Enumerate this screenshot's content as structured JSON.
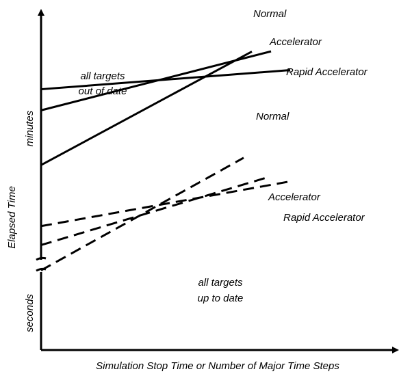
{
  "chart_data": {
    "type": "line",
    "xlabel": "Simulation Stop Time or Number of Major Time Steps",
    "ylabel": "Elapsed Time",
    "y_band_labels": {
      "upper": "minutes",
      "lower": "seconds"
    },
    "annotations": {
      "upper": [
        "all targets",
        "out of date"
      ],
      "lower": [
        "all targets",
        "up to date"
      ]
    },
    "axis_break": true,
    "grid": false,
    "legend": "none",
    "series": [
      {
        "name": "Normal",
        "group": "all targets out of date",
        "style": "solid",
        "x": [
          0,
          100
        ],
        "y": [
          32,
          95
        ]
      },
      {
        "name": "Accelerator",
        "group": "all targets out of date",
        "style": "solid",
        "x": [
          0,
          100
        ],
        "y": [
          58,
          88
        ]
      },
      {
        "name": "Rapid Accelerator",
        "group": "all targets out of date",
        "style": "solid",
        "x": [
          0,
          100
        ],
        "y": [
          68,
          77
        ]
      },
      {
        "name": "Normal",
        "group": "all targets up to date",
        "style": "dashed",
        "x": [
          0,
          100
        ],
        "y": [
          -18,
          47
        ]
      },
      {
        "name": "Accelerator",
        "group": "all targets up to date",
        "style": "dashed",
        "x": [
          0,
          100
        ],
        "y": [
          -6,
          29
        ]
      },
      {
        "name": "Rapid Accelerator",
        "group": "all targets up to date",
        "style": "dashed",
        "x": [
          0,
          100
        ],
        "y": [
          3,
          24
        ]
      }
    ]
  }
}
